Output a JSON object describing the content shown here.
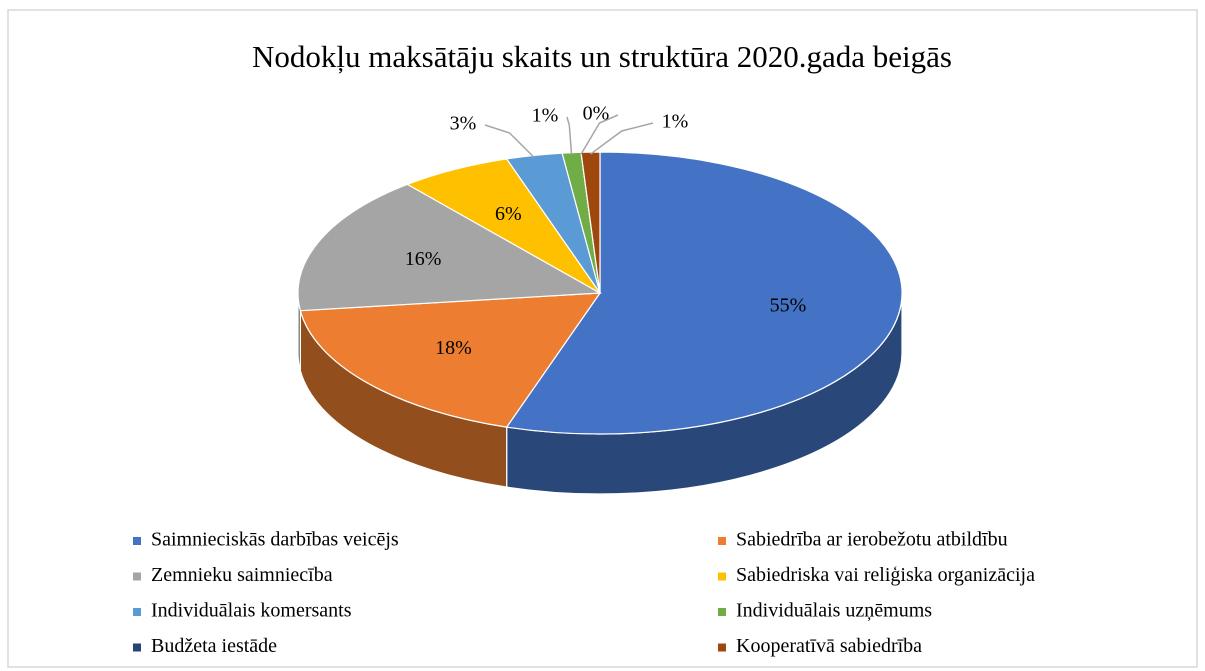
{
  "chart_data": {
    "type": "pie",
    "title": "Nodokļu maksātāju skaits un struktūra 2020.gada beigās",
    "categories": [
      "Saimnieciskās darbības veicējs",
      "Sabiedrība ar ierobežotu atbildību",
      "Zemnieku saimniecība",
      "Sabiedriska vai reliģiska organizācija",
      "Individuālais komersants",
      "Individuālais uzņēmums",
      "Budžeta iestāde",
      "Kooperatīvā sabiedrība"
    ],
    "values": [
      55,
      18,
      16,
      6,
      3,
      1,
      0,
      1
    ],
    "value_labels": [
      "55%",
      "18%",
      "16%",
      "6%",
      "3%",
      "1%",
      "0%",
      "1%"
    ],
    "colors": [
      "#4472c4",
      "#ed7d31",
      "#a5a5a5",
      "#ffc000",
      "#5b9bd5",
      "#70ad47",
      "#264478",
      "#9e480e"
    ],
    "legend": "bottom"
  }
}
